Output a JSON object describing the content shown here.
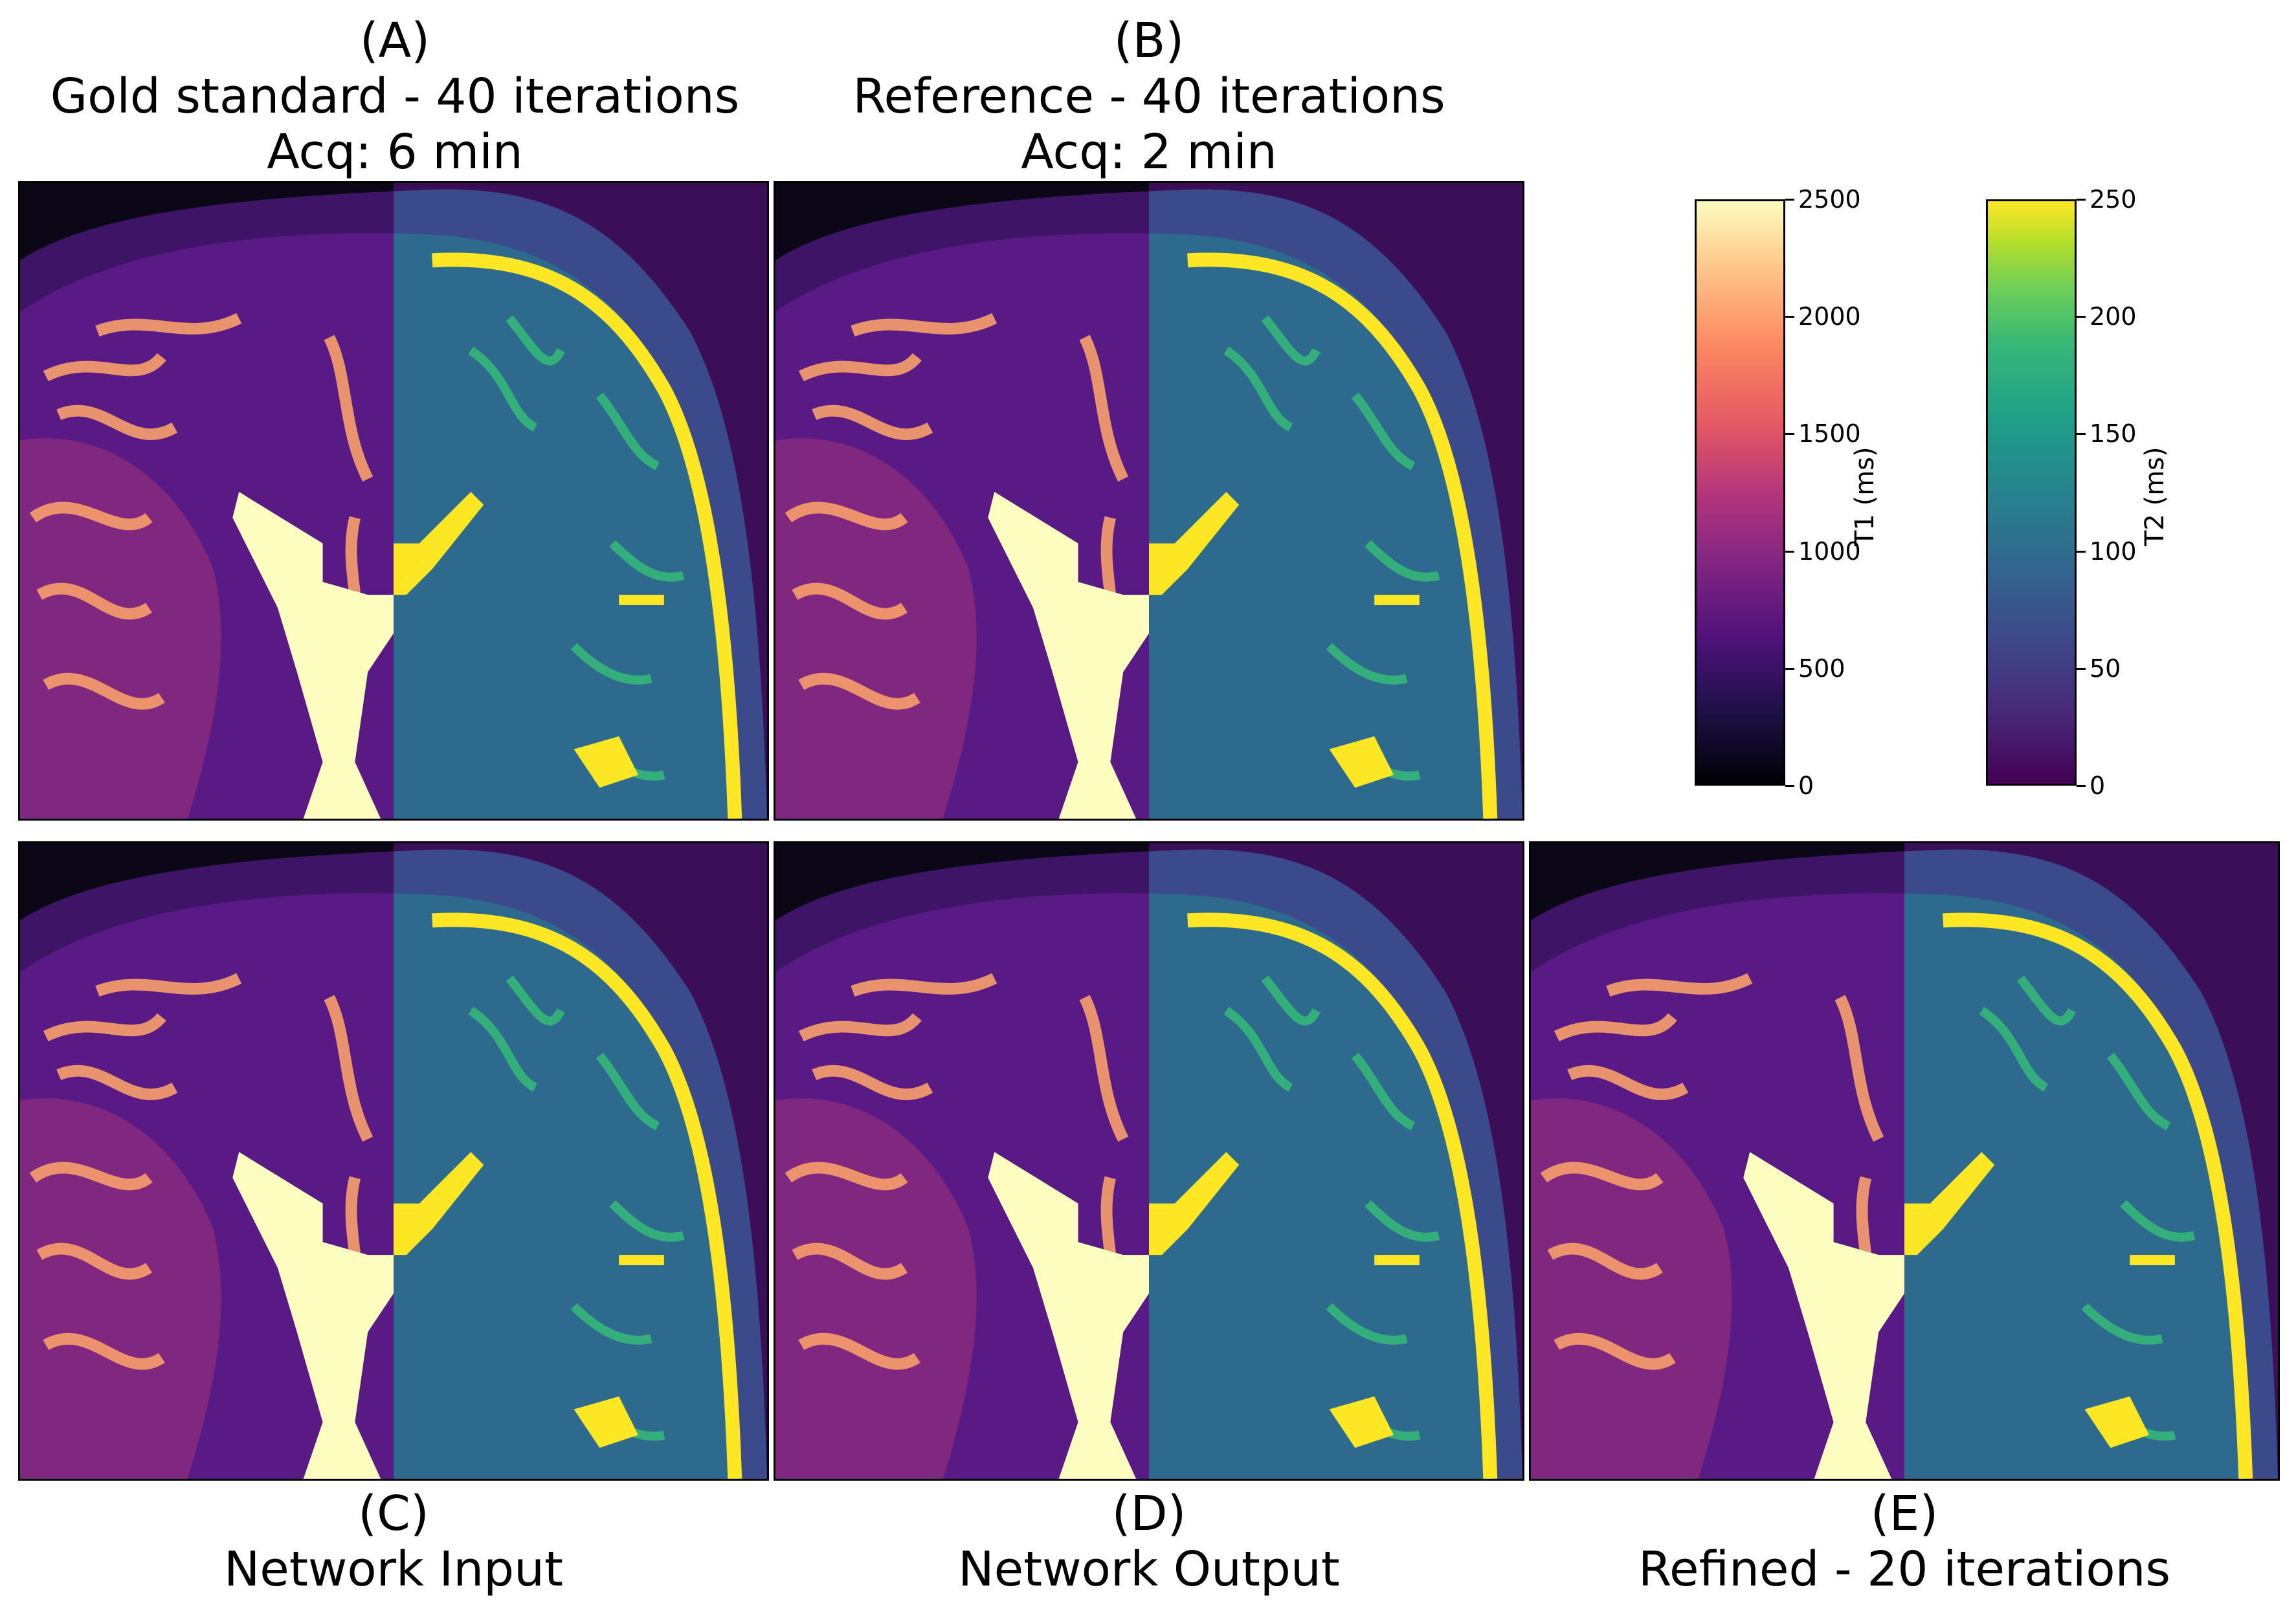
{
  "panels": {
    "A": {
      "letter": "(A)",
      "line1": "Gold standard - 40 iterations",
      "line2": "Acq: 6 min"
    },
    "B": {
      "letter": "(B)",
      "line1": "Reference - 40 iterations",
      "line2": "Acq: 2 min"
    },
    "C": {
      "letter": "(C)",
      "line1": "Network Input"
    },
    "D": {
      "letter": "(D)",
      "line1": "Network Output"
    },
    "E": {
      "letter": "(E)",
      "line1": "Refined - 20 iterations"
    }
  },
  "colorbars": {
    "t1": {
      "label": "T1 (ms)",
      "colormap": "magma",
      "ticks": [
        "2500",
        "2000",
        "1500",
        "1000",
        "500",
        "0"
      ]
    },
    "t2": {
      "label": "T2 (ms)",
      "colormap": "viridis",
      "ticks": [
        "250",
        "200",
        "150",
        "100",
        "50",
        "0"
      ]
    }
  }
}
